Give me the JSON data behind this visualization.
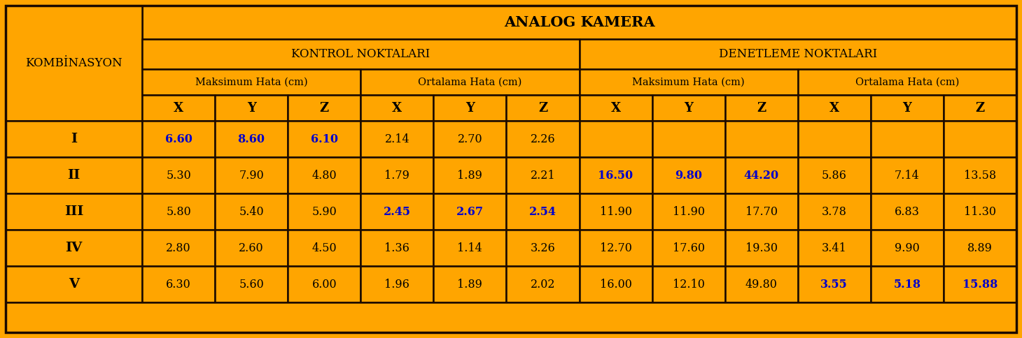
{
  "title": "ANALOG KAMERA",
  "col1_header": "KOMBİNASYON",
  "section1_header": "KONTROL NOKTALARI",
  "section2_header": "DENETLEME NOKTALARI",
  "sub1_header": "Maksimum Hata (cm)",
  "sub2_header": "Ortalama Hata (cm)",
  "sub3_header": "Maksimum Hata (cm)",
  "sub4_header": "Ortalama Hata (cm)",
  "rows": [
    {
      "label": "I",
      "values": [
        "6.60",
        "8.60",
        "6.10",
        "2.14",
        "2.70",
        "2.26",
        "",
        "",
        "",
        "",
        "",
        ""
      ],
      "bold_cols": [
        0,
        1,
        2
      ]
    },
    {
      "label": "II",
      "values": [
        "5.30",
        "7.90",
        "4.80",
        "1.79",
        "1.89",
        "2.21",
        "16.50",
        "9.80",
        "44.20",
        "5.86",
        "7.14",
        "13.58"
      ],
      "bold_cols": [
        6,
        7,
        8
      ]
    },
    {
      "label": "III",
      "values": [
        "5.80",
        "5.40",
        "5.90",
        "2.45",
        "2.67",
        "2.54",
        "11.90",
        "11.90",
        "17.70",
        "3.78",
        "6.83",
        "11.30"
      ],
      "bold_cols": [
        3,
        4,
        5
      ]
    },
    {
      "label": "IV",
      "values": [
        "2.80",
        "2.60",
        "4.50",
        "1.36",
        "1.14",
        "3.26",
        "12.70",
        "17.60",
        "19.30",
        "3.41",
        "9.90",
        "8.89"
      ],
      "bold_cols": []
    },
    {
      "label": "V",
      "values": [
        "6.30",
        "5.60",
        "6.00",
        "1.96",
        "1.89",
        "2.02",
        "16.00",
        "12.10",
        "49.80",
        "3.55",
        "5.18",
        "15.88"
      ],
      "bold_cols": [
        9,
        10,
        11
      ]
    }
  ],
  "bg_color": "#FFA500",
  "border_color": "#1a0a00",
  "text_color_black": "#000000",
  "text_color_blue": "#0000CC"
}
